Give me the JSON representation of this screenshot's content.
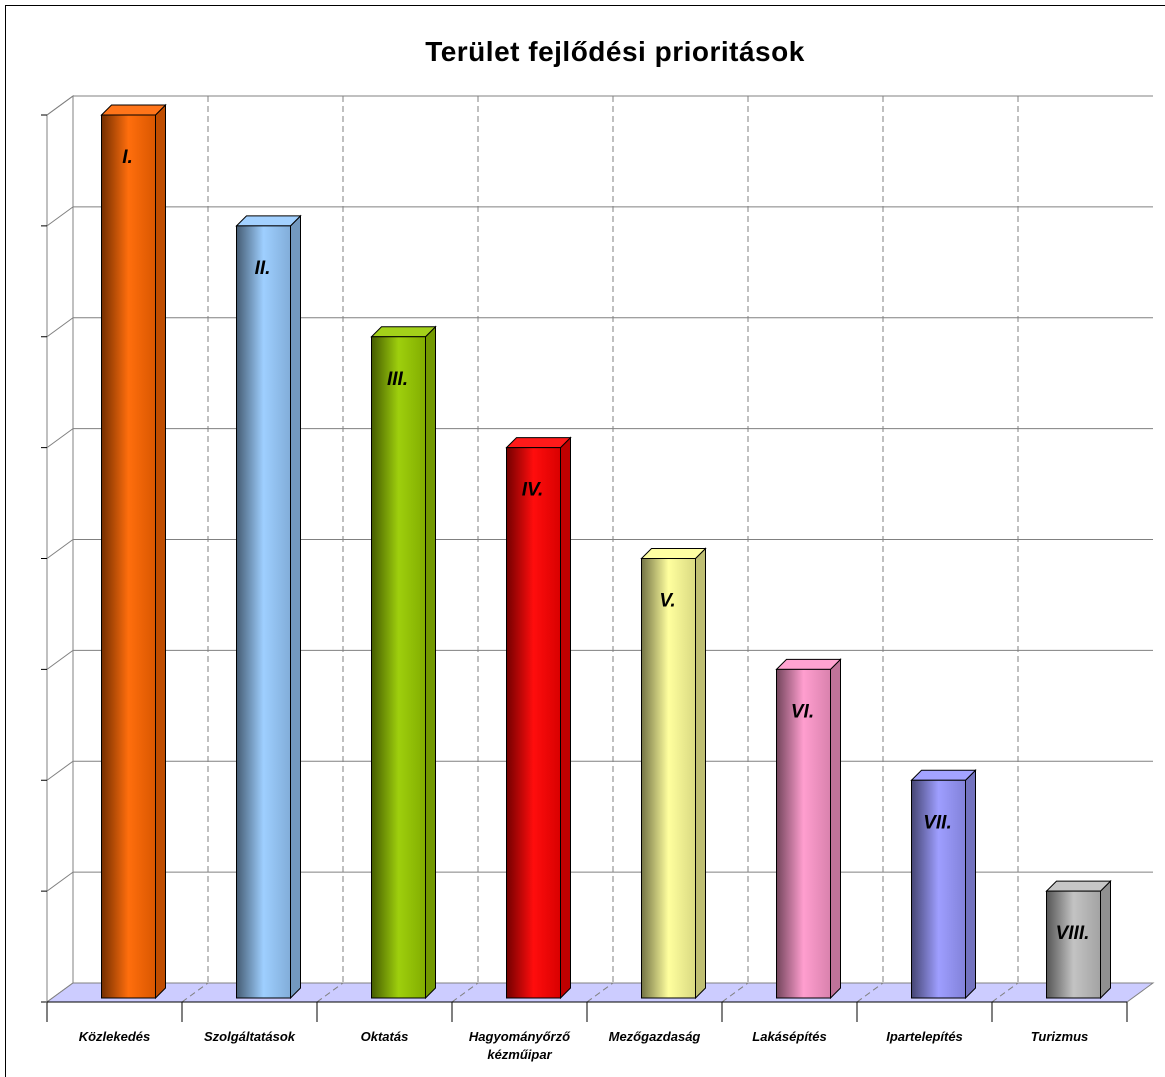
{
  "chart_data": {
    "type": "bar",
    "title": "Terület fejlődési prioritások",
    "categories": [
      [
        "Közlekedés"
      ],
      [
        "Szolgáltatások"
      ],
      [
        "Oktatás"
      ],
      [
        "Hagyományőrző",
        "kézműipar"
      ],
      [
        "Mezőgazdaság"
      ],
      [
        "Lakásépítés"
      ],
      [
        "Ipartelepítés"
      ],
      [
        "Turizmus"
      ]
    ],
    "values": [
      8,
      7,
      6,
      5,
      4,
      3,
      2,
      1
    ],
    "bar_labels": [
      "I.",
      "II.",
      "III.",
      "IV.",
      "V.",
      "VI.",
      "VII.",
      "VIII."
    ],
    "colors": [
      "#ff6600",
      "#99ccff",
      "#99cc00",
      "#ff0000",
      "#ffff99",
      "#ff99cc",
      "#9999ff",
      "#c0c0c0"
    ],
    "ylim": [
      0,
      8
    ],
    "grid": true,
    "floor_color": "#ccccff",
    "xlabel": "",
    "ylabel": ""
  }
}
